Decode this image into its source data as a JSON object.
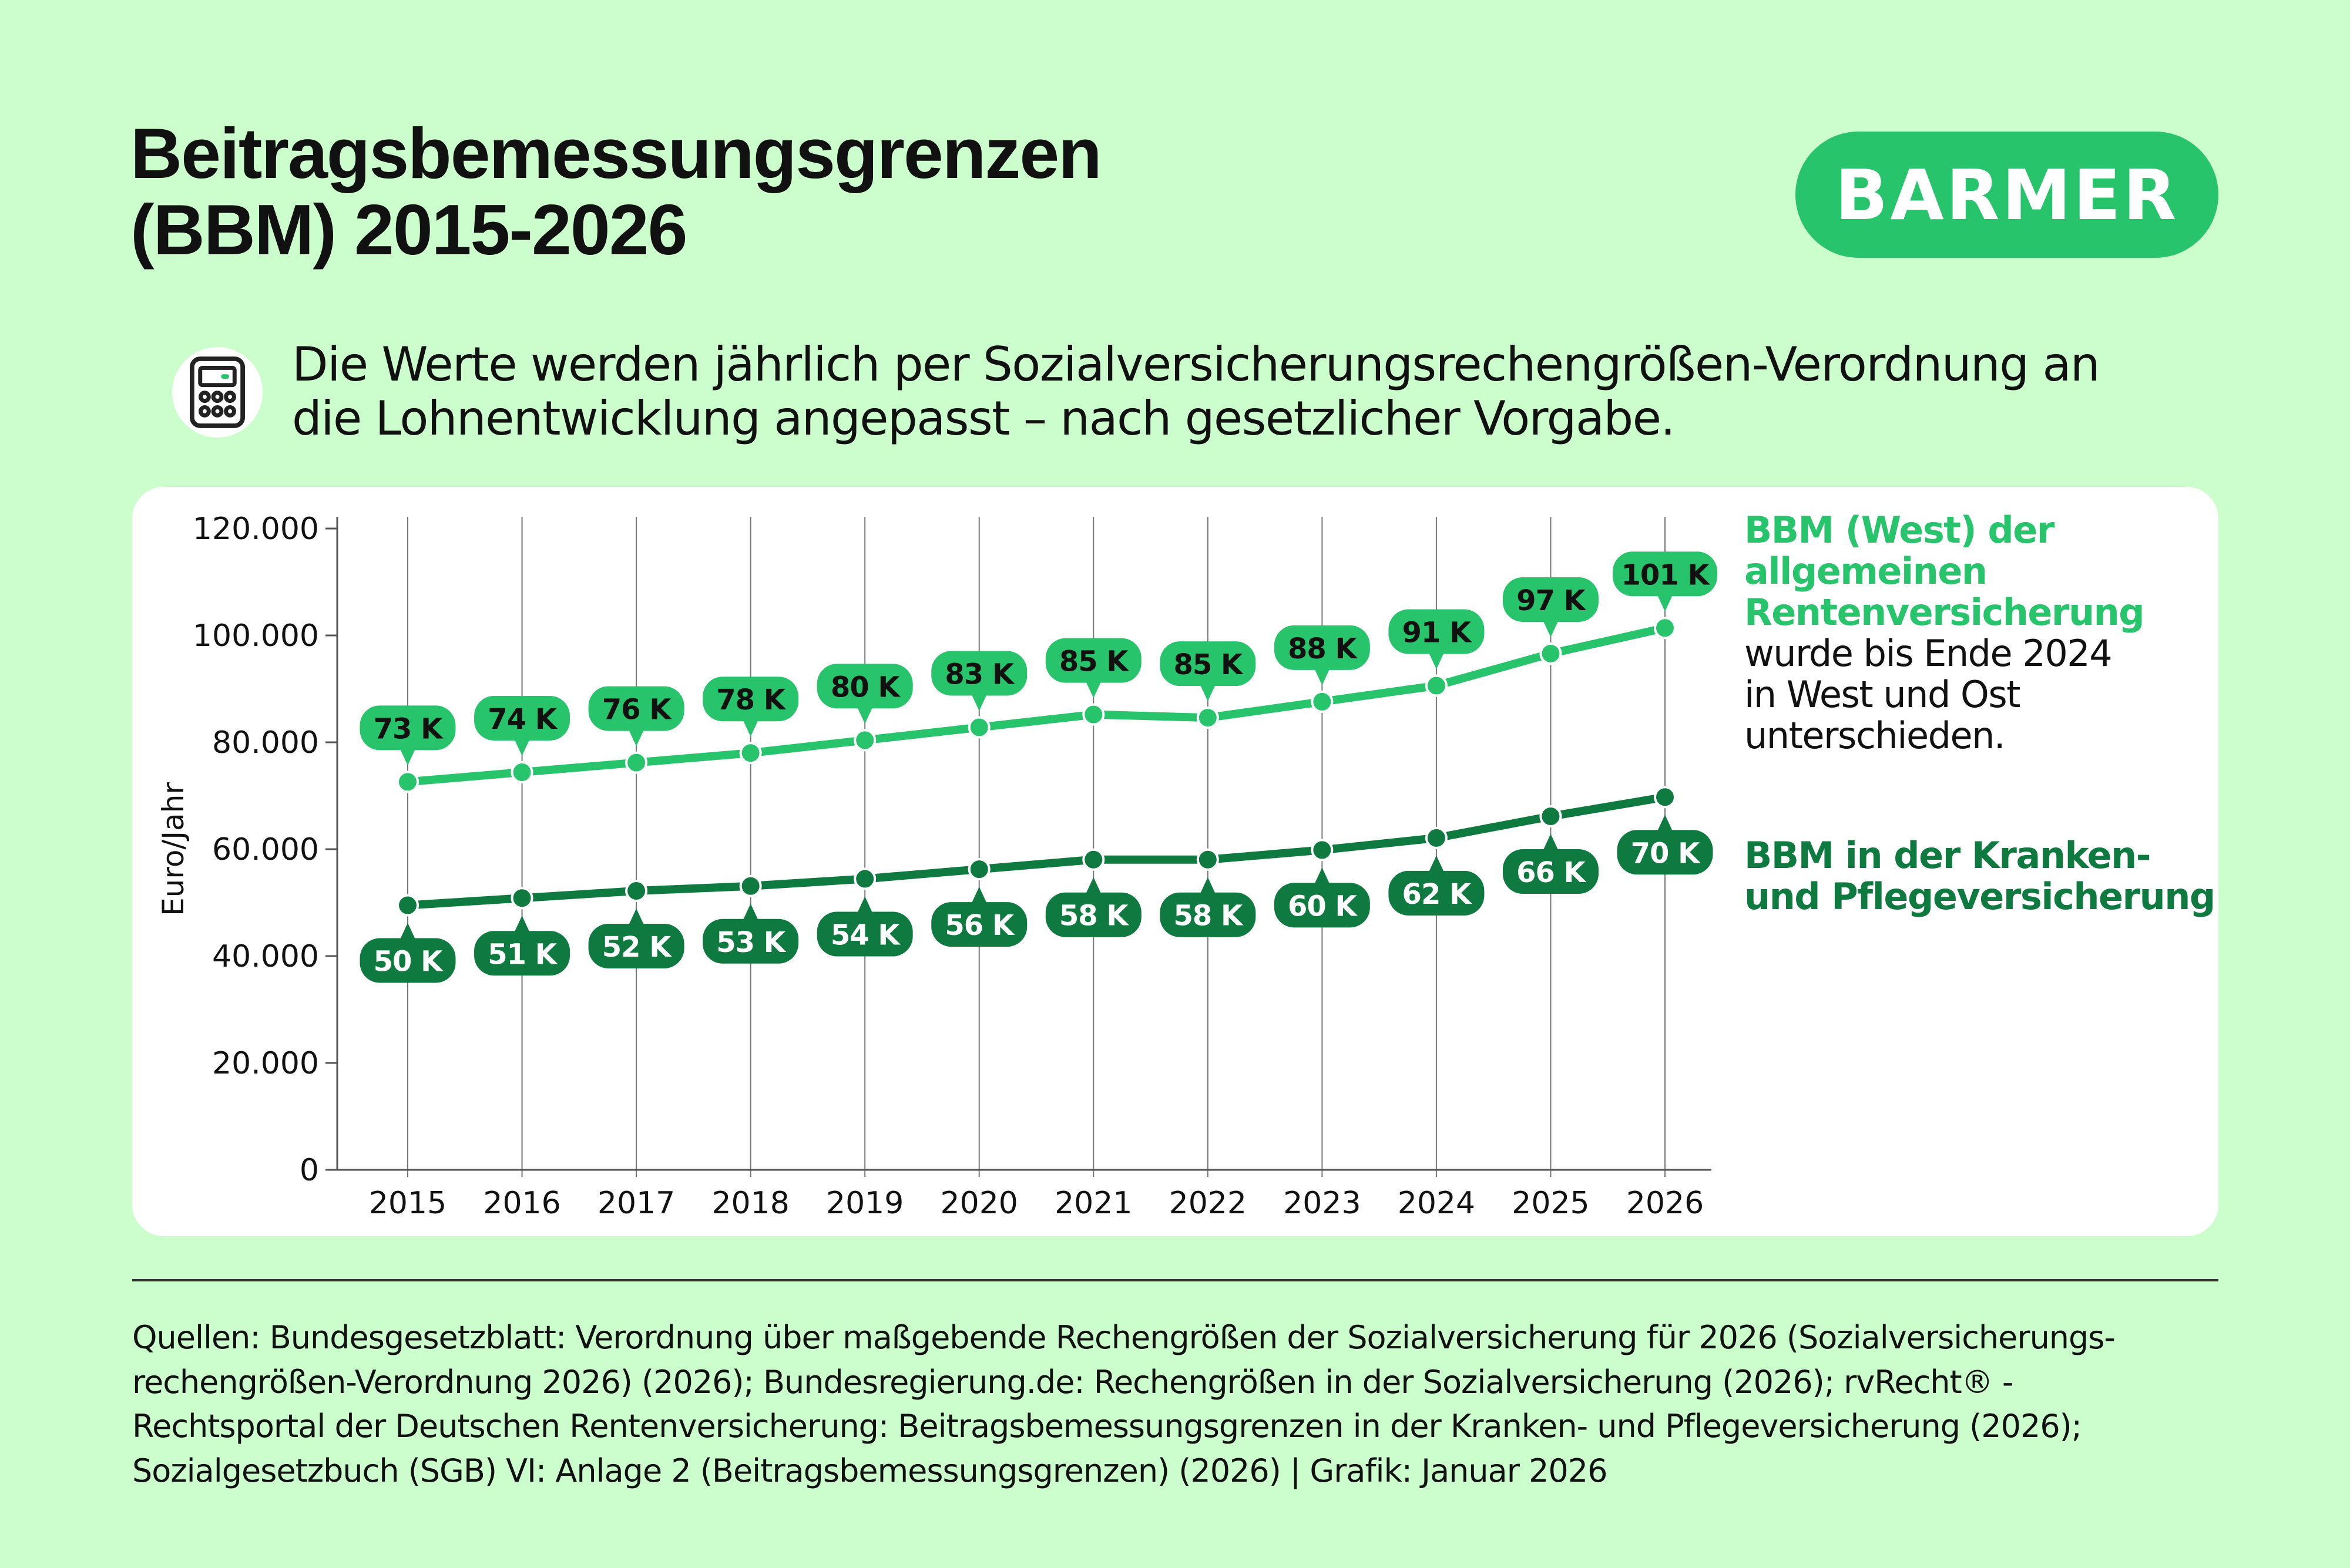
{
  "header": {
    "title_lines": [
      "Beitragsbemessungsgrenzen",
      "(BBM) 2015-2026"
    ],
    "logo_text": "BARMER",
    "icon": "calculator-icon",
    "subtitle_lines": [
      "Die Werte werden jährlich per Sozialversicherungsrechengrößen-Verordnung an",
      "die Lohnentwicklung angepasst – nach gesetzlicher Vorgabe."
    ]
  },
  "legend": {
    "west": {
      "highlight_lines": [
        "BBM (West) der",
        "allgemeinen",
        "Rentenversicherung"
      ],
      "note_lines": [
        "wurde bis Ende 2024",
        "in West und Ost",
        "unterschieden."
      ]
    },
    "kv": {
      "lines": [
        "BBM in der Kranken-",
        "und Pflegeversicherung"
      ]
    }
  },
  "chart_data": {
    "type": "line",
    "ylabel": "Euro/Jahr",
    "xlabel": "",
    "ylim": [
      0,
      120000
    ],
    "yticks": [
      "0",
      "20.000",
      "40.000",
      "60.000",
      "80.000",
      "100.000",
      "120.000"
    ],
    "ytick_values": [
      0,
      20000,
      40000,
      60000,
      80000,
      100000,
      120000
    ],
    "x": [
      "2015",
      "2016",
      "2017",
      "2018",
      "2019",
      "2020",
      "2021",
      "2022",
      "2023",
      "2024",
      "2025",
      "2026"
    ],
    "grid": "vertical",
    "series": [
      {
        "name": "BBM (West) der allgemeinen Rentenversicherung",
        "color": "#27c46b",
        "values": [
          72600,
          74400,
          76200,
          78000,
          80400,
          82800,
          85200,
          84600,
          87600,
          90600,
          96600,
          101400
        ],
        "labels": [
          "73 K",
          "74 K",
          "76 K",
          "78 K",
          "80 K",
          "83 K",
          "85 K",
          "85 K",
          "88 K",
          "91 K",
          "97 K",
          "101 K"
        ],
        "label_position": "above"
      },
      {
        "name": "BBM in der Kranken- und Pflegeversicherung",
        "color": "#0e7a3f",
        "values": [
          49500,
          50850,
          52200,
          53100,
          54450,
          56250,
          58050,
          58050,
          59850,
          62100,
          66150,
          69750
        ],
        "labels": [
          "50 K",
          "51 K",
          "52 K",
          "53 K",
          "54 K",
          "56 K",
          "58 K",
          "58 K",
          "60 K",
          "62 K",
          "66 K",
          "70 K"
        ],
        "label_position": "below"
      }
    ]
  },
  "footer": {
    "source_lines": [
      "Quellen: Bundesgesetzblatt: Verordnung über maßgebende Rechengrößen der Sozialversicherung für 2026 (Sozialversicherungs-",
      "rechengrößen-Verordnung 2026) (2026); Bundesregierung.de: Rechengrößen in der Sozialversicherung (2026); rvRecht® -",
      "Rechtsportal der Deutschen Rentenversicherung: Beitragsbemessungsgrenzen in der Kranken- und Pflegeversicherung (2026);",
      "Sozialgesetzbuch (SGB) VI: Anlage 2 (Beitragsbemessungsgrenzen) (2026) | Grafik: Januar 2026"
    ]
  }
}
